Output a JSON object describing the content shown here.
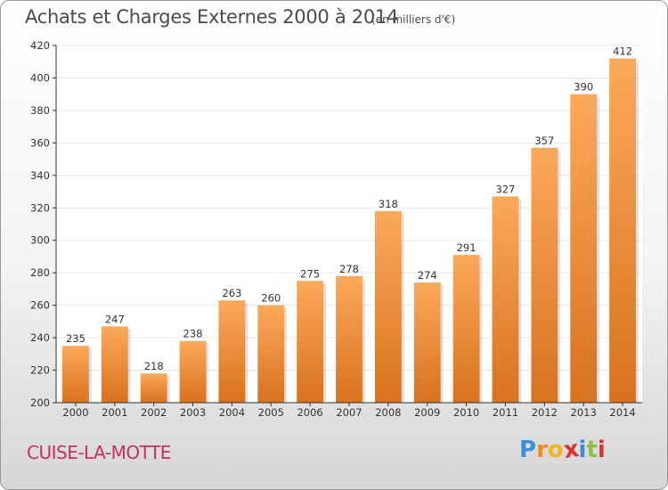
{
  "title": "Achats et Charges Externes 2000 à 2014",
  "subtitle": "(en milliers d'€)",
  "commune": "CUISE-LA-MOTTE",
  "logo": {
    "letters": [
      "P",
      "r",
      "o",
      "x",
      "i",
      "t",
      "i"
    ],
    "colors": [
      "#3a8fd8",
      "#f28c1e",
      "#f2b51e",
      "#e03030",
      "#3a8fd8",
      "#8cc63f",
      "#e03030"
    ]
  },
  "colors": {
    "bar_top": "#fba95a",
    "bar_bottom": "#d8721f",
    "grid": "#e8e8e8",
    "axis": "#333333",
    "text": "#333333"
  },
  "chart_data": {
    "type": "bar",
    "categories": [
      "2000",
      "2001",
      "2002",
      "2003",
      "2004",
      "2005",
      "2006",
      "2007",
      "2008",
      "2009",
      "2010",
      "2011",
      "2012",
      "2013",
      "2014"
    ],
    "values": [
      235,
      247,
      218,
      238,
      263,
      260,
      275,
      278,
      318,
      274,
      291,
      327,
      357,
      390,
      412
    ],
    "yticks": [
      200,
      220,
      240,
      260,
      280,
      300,
      320,
      340,
      360,
      380,
      400,
      420
    ],
    "ylim": [
      200,
      420
    ],
    "grid": true
  }
}
